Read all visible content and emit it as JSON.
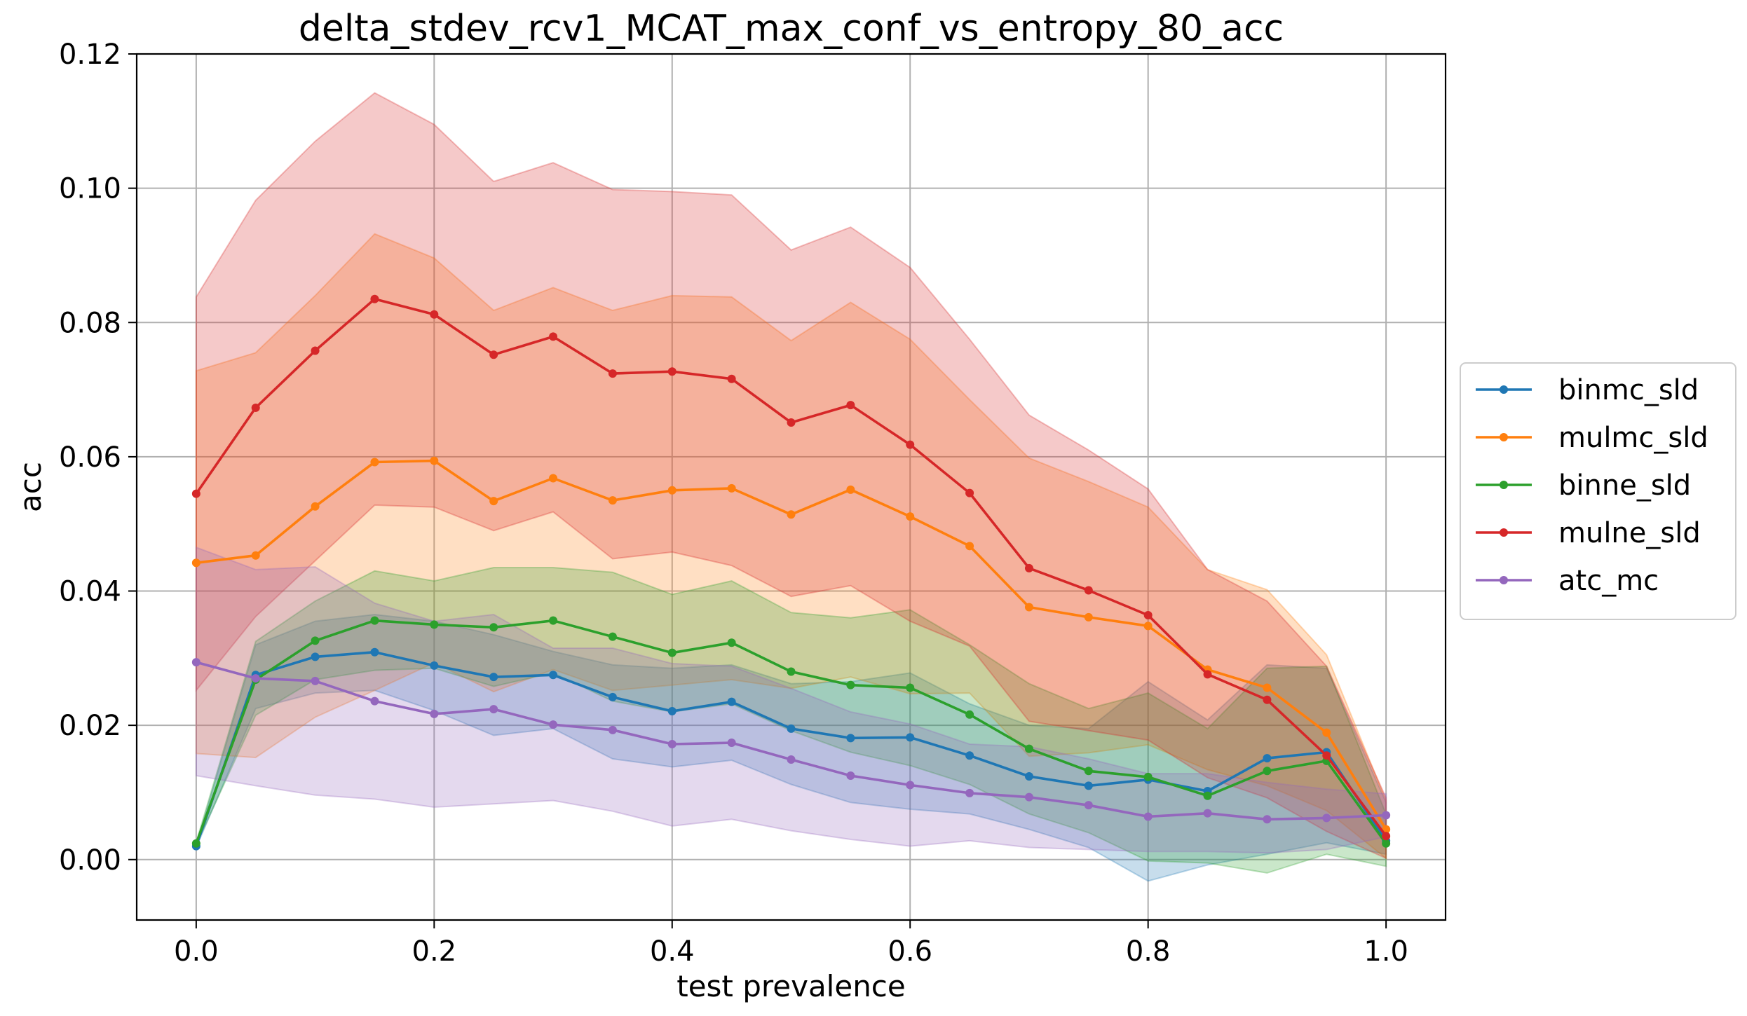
{
  "chart_data": {
    "type": "line",
    "title": "delta_stdev_rcv1_MCAT_max_conf_vs_entropy_80_acc",
    "xlabel": "test prevalence",
    "ylabel": "acc",
    "xlim": [
      -0.05,
      1.05
    ],
    "ylim": [
      -0.009,
      0.12
    ],
    "xticks": [
      "0.0",
      "0.2",
      "0.4",
      "0.6",
      "0.8",
      "1.0"
    ],
    "yticks": [
      "0.00",
      "0.02",
      "0.04",
      "0.06",
      "0.08",
      "0.10",
      "0.12"
    ],
    "grid": true,
    "legend_position": "center-right-outside",
    "x": [
      0.0,
      0.05,
      0.1,
      0.15,
      0.2,
      0.25,
      0.3,
      0.35,
      0.4,
      0.45,
      0.5,
      0.55,
      0.6,
      0.65,
      0.7,
      0.75,
      0.8,
      0.85,
      0.9,
      0.95,
      1.0
    ],
    "series": [
      {
        "name": "binmc_sld",
        "color": "#1f77b4",
        "values": [
          0.002,
          0.0275,
          0.0302,
          0.0309,
          0.0289,
          0.0272,
          0.0275,
          0.0242,
          0.0221,
          0.0235,
          0.0195,
          0.0181,
          0.0182,
          0.0155,
          0.0124,
          0.011,
          0.0119,
          0.0102,
          0.0151,
          0.016,
          0.0028
        ],
        "upper": [
          0.0022,
          0.032,
          0.0355,
          0.0365,
          0.0355,
          0.0335,
          0.031,
          0.029,
          0.0285,
          0.029,
          0.0262,
          0.0265,
          0.0278,
          0.0232,
          0.02,
          0.0195,
          0.0265,
          0.0208,
          0.029,
          0.0285,
          0.0085
        ],
        "lower": [
          0.0018,
          0.0225,
          0.0248,
          0.0252,
          0.0222,
          0.0185,
          0.0195,
          0.015,
          0.0138,
          0.0148,
          0.0112,
          0.0085,
          0.0075,
          0.0068,
          0.0045,
          0.0018,
          -0.0032,
          -0.0008,
          0.0008,
          0.0025,
          0.0008
        ]
      },
      {
        "name": "mulmc_sld",
        "color": "#ff7f0e",
        "values": [
          0.0442,
          0.0453,
          0.0526,
          0.0592,
          0.0594,
          0.0534,
          0.0568,
          0.0535,
          0.055,
          0.0553,
          0.0514,
          0.0551,
          0.0511,
          0.0467,
          0.0376,
          0.0361,
          0.0348,
          0.0283,
          0.0256,
          0.0189,
          0.0045
        ],
        "upper": [
          0.0728,
          0.0755,
          0.084,
          0.0932,
          0.0896,
          0.0818,
          0.0852,
          0.0818,
          0.084,
          0.0838,
          0.0773,
          0.083,
          0.0775,
          0.0685,
          0.0598,
          0.0563,
          0.0525,
          0.0432,
          0.0402,
          0.0305,
          0.0088
        ],
        "lower": [
          0.0158,
          0.0152,
          0.0212,
          0.0252,
          0.0293,
          0.025,
          0.0283,
          0.0252,
          0.026,
          0.0268,
          0.0255,
          0.0272,
          0.0247,
          0.0248,
          0.0154,
          0.0159,
          0.0171,
          0.0134,
          0.011,
          0.0073,
          0.0002
        ]
      },
      {
        "name": "binne_sld",
        "color": "#2ca02c",
        "values": [
          0.0024,
          0.0268,
          0.0326,
          0.0356,
          0.035,
          0.0346,
          0.0356,
          0.0332,
          0.0308,
          0.0323,
          0.028,
          0.026,
          0.0256,
          0.0216,
          0.0165,
          0.0132,
          0.0123,
          0.0095,
          0.0132,
          0.0147,
          0.0024
        ],
        "upper": [
          0.0026,
          0.0325,
          0.0385,
          0.043,
          0.0415,
          0.0435,
          0.0435,
          0.0428,
          0.0395,
          0.0415,
          0.0368,
          0.036,
          0.0372,
          0.032,
          0.0262,
          0.0225,
          0.0248,
          0.0195,
          0.0285,
          0.0288,
          0.0068
        ],
        "lower": [
          0.0022,
          0.0215,
          0.0268,
          0.0282,
          0.0285,
          0.0258,
          0.0278,
          0.0236,
          0.022,
          0.0232,
          0.0192,
          0.016,
          0.014,
          0.0112,
          0.0068,
          0.004,
          -0.0002,
          -0.0005,
          -0.002,
          0.0008,
          -0.001
        ]
      },
      {
        "name": "mulne_sld",
        "color": "#d62728",
        "values": [
          0.0545,
          0.0673,
          0.0758,
          0.0835,
          0.0812,
          0.0752,
          0.0779,
          0.0724,
          0.0727,
          0.0716,
          0.0651,
          0.0677,
          0.0618,
          0.0546,
          0.0434,
          0.0401,
          0.0364,
          0.0276,
          0.0238,
          0.0155,
          0.0035
        ],
        "upper": [
          0.0838,
          0.0982,
          0.107,
          0.1142,
          0.1095,
          0.101,
          0.1038,
          0.0998,
          0.0995,
          0.099,
          0.0908,
          0.0942,
          0.0882,
          0.0775,
          0.0662,
          0.061,
          0.0552,
          0.0432,
          0.0385,
          0.0288,
          0.0092
        ],
        "lower": [
          0.0252,
          0.0362,
          0.0445,
          0.0528,
          0.0525,
          0.049,
          0.0518,
          0.0448,
          0.0458,
          0.0438,
          0.0392,
          0.0408,
          0.0355,
          0.0318,
          0.0206,
          0.0192,
          0.0178,
          0.0122,
          0.0092,
          0.0042,
          0.0002
        ]
      },
      {
        "name": "atc_mc",
        "color": "#9467bd",
        "values": [
          0.0294,
          0.027,
          0.0266,
          0.0236,
          0.0217,
          0.0224,
          0.0201,
          0.0193,
          0.0172,
          0.0174,
          0.0149,
          0.0125,
          0.0111,
          0.0099,
          0.0093,
          0.0081,
          0.0064,
          0.0069,
          0.006,
          0.0062,
          0.0066
        ],
        "upper": [
          0.0465,
          0.0432,
          0.0436,
          0.0382,
          0.0355,
          0.0365,
          0.0315,
          0.0315,
          0.0292,
          0.0288,
          0.0255,
          0.022,
          0.0202,
          0.0172,
          0.0168,
          0.015,
          0.0128,
          0.0128,
          0.0115,
          0.0105,
          0.0098
        ],
        "lower": [
          0.0125,
          0.011,
          0.0096,
          0.009,
          0.0078,
          0.0083,
          0.0088,
          0.0072,
          0.005,
          0.006,
          0.0043,
          0.003,
          0.002,
          0.0028,
          0.0018,
          0.0015,
          0.0012,
          0.0012,
          0.001,
          0.0015,
          0.0034
        ]
      }
    ]
  }
}
